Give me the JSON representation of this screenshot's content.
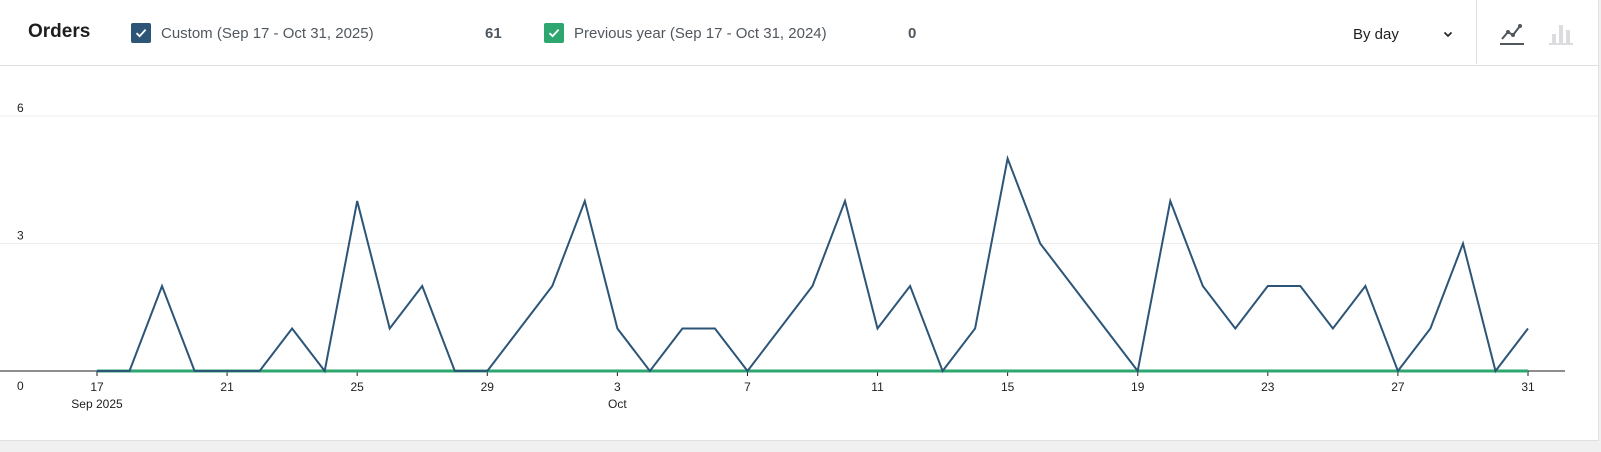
{
  "header": {
    "title": "Orders",
    "interval_label": "By day"
  },
  "legend": [
    {
      "label": "Custom (Sep 17 - Oct 31, 2025)",
      "total": "61",
      "color": "#2c5577",
      "checked": true
    },
    {
      "label": "Previous year (Sep 17 - Oct 31, 2024)",
      "total": "0",
      "color": "#2ea66f",
      "checked": true
    }
  ],
  "chart_types": [
    {
      "name": "line",
      "active": true
    },
    {
      "name": "bar",
      "active": false
    }
  ],
  "chart_data": {
    "type": "line",
    "x": [
      "Sep 17",
      "Sep 18",
      "Sep 19",
      "Sep 20",
      "Sep 21",
      "Sep 22",
      "Sep 23",
      "Sep 24",
      "Sep 25",
      "Sep 26",
      "Sep 27",
      "Sep 28",
      "Sep 29",
      "Sep 30",
      "Oct 1",
      "Oct 2",
      "Oct 3",
      "Oct 4",
      "Oct 5",
      "Oct 6",
      "Oct 7",
      "Oct 8",
      "Oct 9",
      "Oct 10",
      "Oct 11",
      "Oct 12",
      "Oct 13",
      "Oct 14",
      "Oct 15",
      "Oct 16",
      "Oct 17",
      "Oct 18",
      "Oct 19",
      "Oct 20",
      "Oct 21",
      "Oct 22",
      "Oct 23",
      "Oct 24",
      "Oct 25",
      "Oct 26",
      "Oct 27",
      "Oct 28",
      "Oct 29",
      "Oct 30",
      "Oct 31"
    ],
    "series": [
      {
        "name": "Custom (Sep 17 - Oct 31, 2025)",
        "color": "#2c5577",
        "values": [
          0,
          0,
          2,
          0,
          0,
          0,
          1,
          0,
          4,
          1,
          2,
          0,
          0,
          1,
          2,
          4,
          1,
          0,
          1,
          1,
          0,
          1,
          2,
          4,
          1,
          2,
          0,
          1,
          5,
          3,
          2,
          1,
          0,
          4,
          2,
          1,
          2,
          2,
          1,
          2,
          0,
          1,
          3,
          0,
          1
        ]
      },
      {
        "name": "Previous year (Sep 17 - Oct 31, 2024)",
        "color": "#2ea66f",
        "values": [
          0,
          0,
          0,
          0,
          0,
          0,
          0,
          0,
          0,
          0,
          0,
          0,
          0,
          0,
          0,
          0,
          0,
          0,
          0,
          0,
          0,
          0,
          0,
          0,
          0,
          0,
          0,
          0,
          0,
          0,
          0,
          0,
          0,
          0,
          0,
          0,
          0,
          0,
          0,
          0,
          0,
          0,
          0,
          0,
          0
        ]
      }
    ],
    "y_ticks": [
      "6",
      "3",
      "0"
    ],
    "ylim": [
      0,
      6
    ],
    "x_ticks": [
      {
        "index": 0,
        "label": "17",
        "sub": "Sep 2025"
      },
      {
        "index": 4,
        "label": "21"
      },
      {
        "index": 8,
        "label": "25"
      },
      {
        "index": 12,
        "label": "29"
      },
      {
        "index": 16,
        "label": "3",
        "sub": "Oct"
      },
      {
        "index": 20,
        "label": "7"
      },
      {
        "index": 24,
        "label": "11"
      },
      {
        "index": 28,
        "label": "15"
      },
      {
        "index": 32,
        "label": "19"
      },
      {
        "index": 36,
        "label": "23"
      },
      {
        "index": 40,
        "label": "27"
      },
      {
        "index": 44,
        "label": "31"
      }
    ],
    "grid": true
  }
}
